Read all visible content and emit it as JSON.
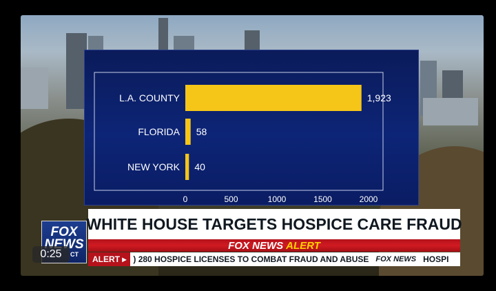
{
  "chart_data": {
    "type": "bar",
    "orientation": "horizontal",
    "categories": [
      "L.A. COUNTY",
      "FLORIDA",
      "NEW YORK"
    ],
    "values": [
      1923,
      58,
      40
    ],
    "value_labels": [
      "1,923",
      "58",
      "40"
    ],
    "xticks": [
      0,
      500,
      1000,
      1500,
      2000
    ],
    "xtick_labels": [
      "0",
      "500",
      "1000",
      "1500",
      "2000"
    ],
    "xlim": [
      0,
      2200
    ],
    "title": "",
    "xlabel": "",
    "ylabel": "",
    "grid": false,
    "bar_color": "#f5c518"
  },
  "headline": "WHITE HOUSE TARGETS HOSPICE CARE FRAUD",
  "alert_banner": {
    "brand": "FOX NEWS",
    "word": "ALERT"
  },
  "ticker": {
    "tag": "ALERT ▸",
    "text": ") 280 HOSPICE LICENSES TO COMBAT FRAUD AND ABUSE",
    "logo": "FOX NEWS",
    "next": "HOSPI"
  },
  "channel_logo": {
    "line1": "FOX",
    "line2": "NEWS",
    "line3": "CT"
  },
  "timestamp": "0:25",
  "colors": {
    "panel": "#0d2577",
    "bar": "#f5c518",
    "alert_red": "#b5121b",
    "alert_yellow": "#ffd200"
  }
}
